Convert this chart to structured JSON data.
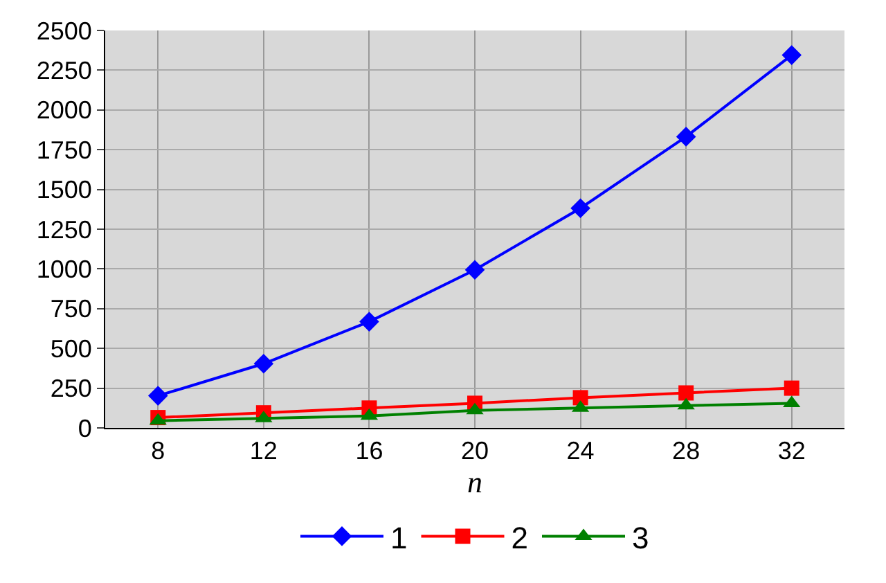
{
  "chart_data": {
    "type": "line",
    "xlabel": "n",
    "categories": [
      "8",
      "12",
      "16",
      "20",
      "24",
      "28",
      "32"
    ],
    "series": [
      {
        "name": "1",
        "color": "#0000ff",
        "marker": "diamond",
        "values": [
          202,
          404,
          668,
          994,
          1382,
          1832,
          2345
        ]
      },
      {
        "name": "2",
        "color": "#ff0000",
        "marker": "square",
        "values": [
          65,
          95,
          125,
          155,
          190,
          220,
          250
        ]
      },
      {
        "name": "3",
        "color": "#008000",
        "marker": "triangle",
        "values": [
          45,
          60,
          75,
          110,
          125,
          140,
          155
        ]
      }
    ],
    "ylim": [
      0,
      2500
    ],
    "yticks": [
      0,
      250,
      500,
      750,
      1000,
      1250,
      1500,
      1750,
      2000,
      2250,
      2500
    ],
    "grid": true,
    "legend": "bottom",
    "line_style": "solid"
  }
}
